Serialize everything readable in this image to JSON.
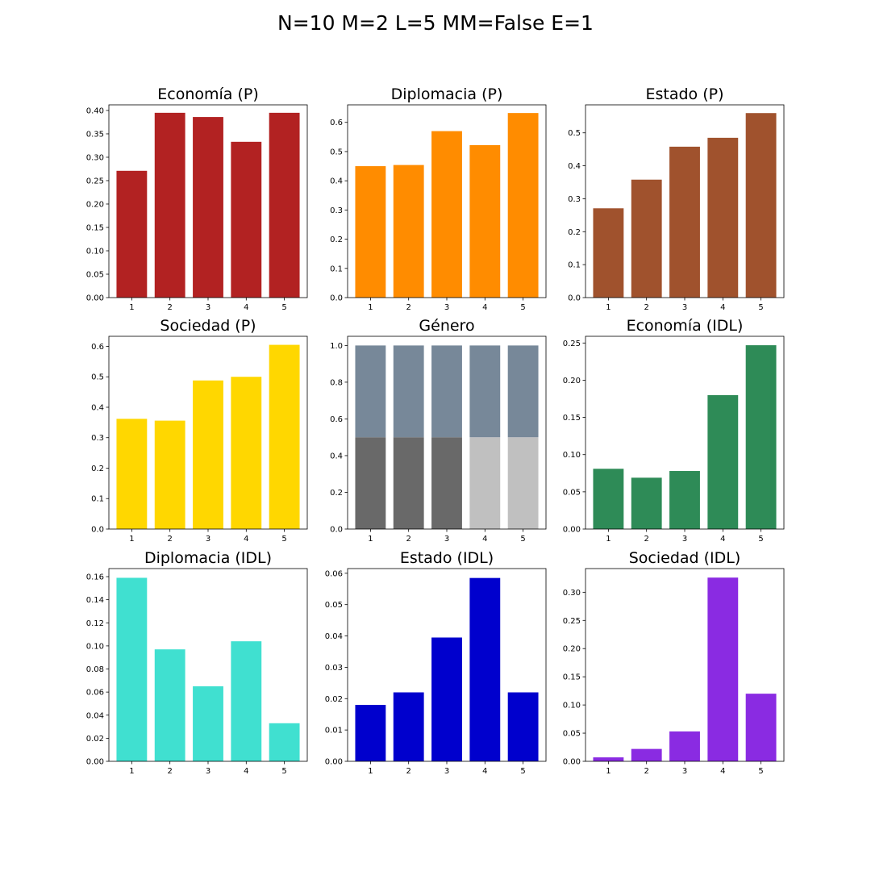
{
  "figure": {
    "title": "N=10 M=2 L=5 MM=False E=1"
  },
  "chart_data": [
    {
      "type": "bar",
      "title": "Economía (P)",
      "color": "#b22222",
      "categories": [
        "1",
        "2",
        "3",
        "4",
        "5"
      ],
      "values": [
        0.271,
        0.395,
        0.386,
        0.333,
        0.395
      ],
      "ylim": [
        0,
        0.412
      ],
      "yticks": [
        "0.00",
        "0.05",
        "0.10",
        "0.15",
        "0.20",
        "0.25",
        "0.30",
        "0.35",
        "0.40"
      ],
      "ytick_values": [
        0,
        0.05,
        0.1,
        0.15,
        0.2,
        0.25,
        0.3,
        0.35,
        0.4
      ],
      "grid": false
    },
    {
      "type": "bar",
      "title": "Diplomacia (P)",
      "color": "#ff8c00",
      "categories": [
        "1",
        "2",
        "3",
        "4",
        "5"
      ],
      "values": [
        0.45,
        0.454,
        0.57,
        0.522,
        0.632
      ],
      "ylim": [
        0,
        0.66
      ],
      "yticks": [
        "0.0",
        "0.1",
        "0.2",
        "0.3",
        "0.4",
        "0.5",
        "0.6"
      ],
      "ytick_values": [
        0,
        0.1,
        0.2,
        0.3,
        0.4,
        0.5,
        0.6
      ],
      "grid": false
    },
    {
      "type": "bar",
      "title": "Estado (P)",
      "color": "#a0522d",
      "categories": [
        "1",
        "2",
        "3",
        "4",
        "5"
      ],
      "values": [
        0.271,
        0.358,
        0.458,
        0.485,
        0.56
      ],
      "ylim": [
        0,
        0.585
      ],
      "yticks": [
        "0.0",
        "0.1",
        "0.2",
        "0.3",
        "0.4",
        "0.5"
      ],
      "ytick_values": [
        0,
        0.1,
        0.2,
        0.3,
        0.4,
        0.5
      ],
      "grid": false
    },
    {
      "type": "bar",
      "title": "Sociedad (P)",
      "color": "#ffd700",
      "categories": [
        "1",
        "2",
        "3",
        "4",
        "5"
      ],
      "values": [
        0.362,
        0.356,
        0.488,
        0.5,
        0.605
      ],
      "ylim": [
        0,
        0.633
      ],
      "yticks": [
        "0.0",
        "0.1",
        "0.2",
        "0.3",
        "0.4",
        "0.5",
        "0.6"
      ],
      "ytick_values": [
        0,
        0.1,
        0.2,
        0.3,
        0.4,
        0.5,
        0.6
      ],
      "grid": false
    },
    {
      "type": "bar",
      "title": "Género",
      "stacked": true,
      "categories": [
        "1",
        "2",
        "3",
        "4",
        "5"
      ],
      "series": [
        {
          "values": [
            0.5,
            0.5,
            0.5,
            0.5,
            0.5
          ],
          "colors": [
            "#696969",
            "#696969",
            "#696969",
            "#c0c0c0",
            "#c0c0c0"
          ]
        },
        {
          "values": [
            0.5,
            0.5,
            0.5,
            0.5,
            0.5
          ],
          "colors": [
            "#778899",
            "#778899",
            "#778899",
            "#778899",
            "#778899"
          ]
        }
      ],
      "ylim": [
        0,
        1.05
      ],
      "yticks": [
        "0.0",
        "0.2",
        "0.4",
        "0.6",
        "0.8",
        "1.0"
      ],
      "ytick_values": [
        0,
        0.2,
        0.4,
        0.6,
        0.8,
        1.0
      ],
      "grid": false
    },
    {
      "type": "bar",
      "title": "Economía (IDL)",
      "color": "#2e8b57",
      "categories": [
        "1",
        "2",
        "3",
        "4",
        "5"
      ],
      "values": [
        0.081,
        0.069,
        0.078,
        0.18,
        0.247
      ],
      "ylim": [
        0,
        0.259
      ],
      "yticks": [
        "0.00",
        "0.05",
        "0.10",
        "0.15",
        "0.20",
        "0.25"
      ],
      "ytick_values": [
        0,
        0.05,
        0.1,
        0.15,
        0.2,
        0.25
      ],
      "grid": false
    },
    {
      "type": "bar",
      "title": "Diplomacia (IDL)",
      "color": "#40e0d0",
      "categories": [
        "1",
        "2",
        "3",
        "4",
        "5"
      ],
      "values": [
        0.159,
        0.097,
        0.065,
        0.104,
        0.033
      ],
      "ylim": [
        0,
        0.167
      ],
      "yticks": [
        "0.00",
        "0.02",
        "0.04",
        "0.06",
        "0.08",
        "0.10",
        "0.12",
        "0.14",
        "0.16"
      ],
      "ytick_values": [
        0,
        0.02,
        0.04,
        0.06,
        0.08,
        0.1,
        0.12,
        0.14,
        0.16
      ],
      "grid": false
    },
    {
      "type": "bar",
      "title": "Estado (IDL)",
      "color": "#0000cd",
      "categories": [
        "1",
        "2",
        "3",
        "4",
        "5"
      ],
      "values": [
        0.018,
        0.022,
        0.0395,
        0.0585,
        0.022
      ],
      "ylim": [
        0,
        0.0615
      ],
      "yticks": [
        "0.00",
        "0.01",
        "0.02",
        "0.03",
        "0.04",
        "0.05",
        "0.06"
      ],
      "ytick_values": [
        0,
        0.01,
        0.02,
        0.03,
        0.04,
        0.05,
        0.06
      ],
      "grid": false
    },
    {
      "type": "bar",
      "title": "Sociedad (IDL)",
      "color": "#8a2be2",
      "categories": [
        "1",
        "2",
        "3",
        "4",
        "5"
      ],
      "values": [
        0.007,
        0.022,
        0.053,
        0.326,
        0.12
      ],
      "ylim": [
        0,
        0.342
      ],
      "yticks": [
        "0.00",
        "0.05",
        "0.10",
        "0.15",
        "0.20",
        "0.25",
        "0.30"
      ],
      "ytick_values": [
        0,
        0.05,
        0.1,
        0.15,
        0.2,
        0.25,
        0.3
      ],
      "grid": false
    }
  ]
}
